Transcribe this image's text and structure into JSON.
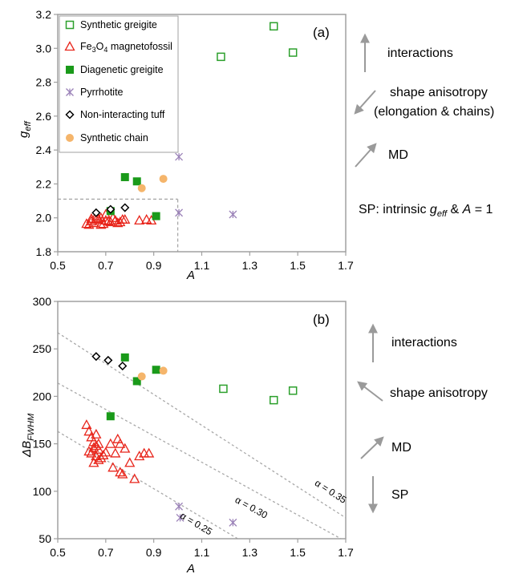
{
  "colors": {
    "synthetic_greigite": "#2ca02c",
    "magnetofossil": "#e8251b",
    "diagenetic_greigite": "#1a9a1a",
    "pyrrhotite": "#9b82b8",
    "tuff": "#000000",
    "synthetic_chain": "#f5b56b",
    "axis": "#a0a0a0",
    "guide": "#a8a8a8",
    "arrow": "#9a9a9a"
  },
  "chart_data": [
    {
      "type": "scatter",
      "panel_label": "(a)",
      "xlabel": "A",
      "ylabel_main": "g",
      "ylabel_sub": "eff",
      "xlim": [
        0.5,
        1.7
      ],
      "ylim": [
        1.8,
        3.2
      ],
      "xticks": [
        "0.5",
        "0.7",
        "0.9",
        "1.1",
        "1.3",
        "1.5",
        "1.7"
      ],
      "yticks": [
        "1.8",
        "2.0",
        "2.2",
        "2.4",
        "2.6",
        "2.8",
        "3.0",
        "3.2"
      ],
      "legend_position": "top-left",
      "legend": [
        {
          "marker": "square-open",
          "label": "Synthetic greigite"
        },
        {
          "marker": "triangle-open",
          "label_main": "Fe",
          "label_sub1": "3",
          "label_mid": "O",
          "label_sub2": "4",
          "label_tail": " magnetofossil"
        },
        {
          "marker": "square-filled",
          "label": "Diagenetic greigite"
        },
        {
          "marker": "star",
          "label": "Pyrrhotite"
        },
        {
          "marker": "diamond-open",
          "label": "Non-interacting tuff"
        },
        {
          "marker": "circle-filled",
          "label": "Synthetic chain"
        }
      ],
      "guide_box": {
        "x": 1.0,
        "y": 2.11
      },
      "series": [
        {
          "name": "Synthetic greigite",
          "marker": "square-open",
          "x": [
            1.18,
            1.4,
            1.48
          ],
          "y": [
            2.95,
            3.13,
            2.975
          ]
        },
        {
          "name": "Fe3O4 magnetofossil",
          "marker": "triangle-open",
          "x": [
            0.62,
            0.64,
            0.66,
            0.68,
            0.7,
            0.72,
            0.63,
            0.65,
            0.67,
            0.69,
            0.71,
            0.73,
            0.75,
            0.77,
            0.66,
            0.7,
            0.74,
            0.78,
            0.84,
            0.87,
            0.89,
            0.64,
            0.68,
            0.76
          ],
          "y": [
            1.965,
            1.98,
            1.99,
            2.0,
            1.985,
            1.975,
            1.96,
            1.97,
            1.995,
            1.965,
            1.98,
            2.0,
            1.97,
            1.99,
            2.01,
            2.02,
            1.985,
            1.99,
            1.985,
            1.99,
            1.985,
            1.995,
            1.96,
            1.975
          ]
        },
        {
          "name": "Diagenetic greigite",
          "marker": "square-filled",
          "x": [
            0.78,
            0.83,
            0.91,
            0.72
          ],
          "y": [
            2.24,
            2.215,
            2.01,
            2.04
          ]
        },
        {
          "name": "Pyrrhotite",
          "marker": "star",
          "x": [
            1.005,
            1.005,
            1.23
          ],
          "y": [
            2.36,
            2.03,
            2.02
          ]
        },
        {
          "name": "Non-interacting tuff",
          "marker": "diamond-open",
          "x": [
            0.66,
            0.72,
            0.78
          ],
          "y": [
            2.03,
            2.05,
            2.06
          ]
        },
        {
          "name": "Synthetic chain",
          "marker": "circle-filled",
          "x": [
            0.85,
            0.94
          ],
          "y": [
            2.175,
            2.23
          ]
        }
      ]
    },
    {
      "type": "scatter",
      "panel_label": "(b)",
      "xlabel": "A",
      "ylabel_main": "ΔB",
      "ylabel_sub": "FWHM",
      "xlim": [
        0.5,
        1.7
      ],
      "ylim": [
        50,
        300
      ],
      "xticks": [
        "0.5",
        "0.7",
        "0.9",
        "1.1",
        "1.3",
        "1.5",
        "1.7"
      ],
      "yticks": [
        "50",
        "100",
        "150",
        "200",
        "250",
        "300"
      ],
      "lines": [
        {
          "label": "α = 0.35",
          "x": [
            0.5,
            1.7
          ],
          "y": [
            267,
            72
          ],
          "label_x": 1.63,
          "label_y": 97
        },
        {
          "label": "α = 0.30",
          "x": [
            0.5,
            1.68
          ],
          "y": [
            214,
            50
          ],
          "label_x": 1.3,
          "label_y": 80
        },
        {
          "label": "α = 0.25",
          "x": [
            0.5,
            1.25
          ],
          "y": [
            163,
            50
          ],
          "label_x": 1.07,
          "label_y": 63
        }
      ],
      "series": [
        {
          "name": "Synthetic greigite",
          "marker": "square-open",
          "x": [
            1.19,
            1.4,
            1.48
          ],
          "y": [
            208,
            196,
            206
          ]
        },
        {
          "name": "Fe3O4 magnetofossil",
          "marker": "triangle-open",
          "x": [
            0.62,
            0.63,
            0.64,
            0.65,
            0.66,
            0.67,
            0.64,
            0.66,
            0.68,
            0.65,
            0.67,
            0.69,
            0.63,
            0.65,
            0.67,
            0.7,
            0.72,
            0.75,
            0.76,
            0.78,
            0.74,
            0.76,
            0.73,
            0.77,
            0.82,
            0.84,
            0.86,
            0.88,
            0.8,
            0.66
          ],
          "y": [
            170,
            163,
            157,
            152,
            148,
            144,
            140,
            137,
            135,
            130,
            133,
            138,
            142,
            146,
            150,
            141,
            150,
            155,
            150,
            145,
            140,
            120,
            125,
            118,
            113,
            137,
            140,
            140,
            130,
            160
          ]
        },
        {
          "name": "Diagenetic greigite",
          "marker": "square-filled",
          "x": [
            0.72,
            0.78,
            0.83,
            0.91
          ],
          "y": [
            179,
            241,
            216,
            228
          ]
        },
        {
          "name": "Pyrrhotite",
          "marker": "star",
          "x": [
            1.005,
            1.01,
            1.23
          ],
          "y": [
            84,
            72,
            67
          ]
        },
        {
          "name": "Non-interacting tuff",
          "marker": "diamond-open",
          "x": [
            0.66,
            0.71,
            0.77
          ],
          "y": [
            242,
            238,
            232
          ]
        },
        {
          "name": "Synthetic chain",
          "marker": "circle-filled",
          "x": [
            0.85,
            0.94
          ],
          "y": [
            221,
            227
          ]
        }
      ]
    }
  ],
  "annotations_a": {
    "interactions": "interactions",
    "shape_line1": "shape anisotropy",
    "shape_line2": "(elongation & chains)",
    "md": "MD",
    "sp_pre": "SP: intrinsic ",
    "sp_g": "g",
    "sp_sub": "eff",
    "sp_mid": " & ",
    "sp_A": "A",
    "sp_tail": " = 1"
  },
  "annotations_b": {
    "interactions": "interactions",
    "shape": "shape anisotropy",
    "md": "MD",
    "sp": "SP"
  }
}
